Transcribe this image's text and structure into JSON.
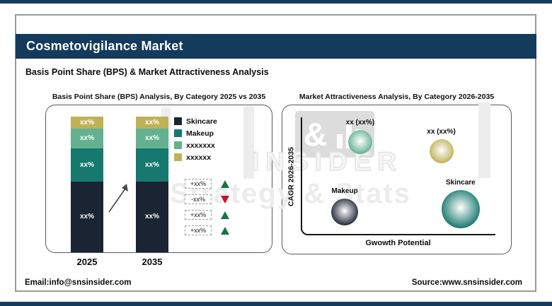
{
  "header": {
    "title": "Cosmetovigilance Market",
    "subtitle": "Basis Point Share (BPS) & Market Attractiveness Analysis"
  },
  "watermark": {
    "ampersand": "&",
    "insider": "INSIDER",
    "tagline": "Strategy & Stats"
  },
  "footer": {
    "email": "Email:info@snsinsider.com",
    "source": "Source:www.snsinsider.com"
  },
  "colors": {
    "brand_navy": "#143a5c",
    "bar_navy": "#1b2433",
    "teal": "#17786f",
    "seafoam": "#63b191",
    "khaki": "#bfb157",
    "delta_green": "#17753f",
    "delta_red": "#c41230",
    "arrow_gray": "#4a4a4a"
  },
  "chart_data": [
    {
      "type": "bar",
      "stacked": true,
      "title": "Basis Point Share (BPS) Analysis, By Category 2025 vs 2035",
      "categories": [
        "2025",
        "2035"
      ],
      "value_note": "all segment values shown as placeholder text",
      "series": [
        {
          "name": "Skincare",
          "color": "#1b2433",
          "values": [
            "xx%",
            "xx%"
          ],
          "height_pct": 52.3
        },
        {
          "name": "Makeup",
          "color": "#17786f",
          "values": [
            "xx%",
            "xx%"
          ],
          "height_pct": 24.4
        },
        {
          "name": "xxxxxxx",
          "color": "#63b191",
          "values": [
            "xx%",
            "xx%"
          ],
          "height_pct": 14.5
        },
        {
          "name": "xxxxxx",
          "color": "#bfb157",
          "values": [
            "xx%",
            "xx%"
          ],
          "height_pct": 8.8
        }
      ],
      "deltas": [
        {
          "label": "+xx%",
          "direction": "up"
        },
        {
          "label": "-xx%",
          "direction": "down"
        },
        {
          "label": "+xx%",
          "direction": "up"
        },
        {
          "label": "+xx%",
          "direction": "up"
        }
      ]
    },
    {
      "type": "scatter",
      "title": "Market Attractiveness Analysis, By Category 2026-2035",
      "xlabel": "Gwowth Potential",
      "ylabel": "CAGR 2026-2035",
      "x_range": [
        0,
        1
      ],
      "y_range": [
        0,
        1
      ],
      "grid": false,
      "points": [
        {
          "label": "xx (xx%)",
          "x": 0.3,
          "y": 0.79,
          "r": 17,
          "color": "#63b191"
        },
        {
          "label": "xx (xx%)",
          "x": 0.72,
          "y": 0.71,
          "r": 17,
          "color": "#bfb157"
        },
        {
          "label": "Makeup",
          "x": 0.22,
          "y": 0.2,
          "r": 19,
          "color": "#1e2736"
        },
        {
          "label": "Skincare",
          "x": 0.82,
          "y": 0.22,
          "r": 27,
          "color": "#17786f"
        }
      ]
    }
  ]
}
